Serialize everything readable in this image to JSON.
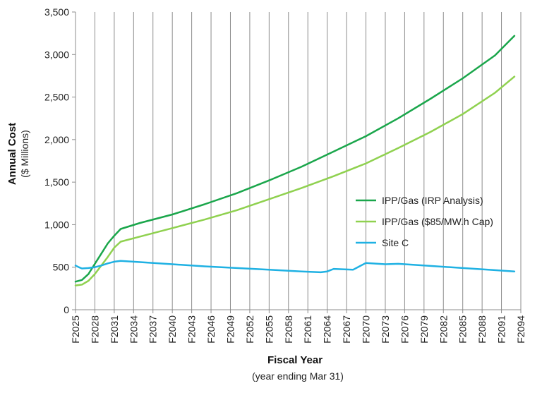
{
  "chart_data": {
    "type": "line",
    "title": "",
    "ylabel": "Annual Cost",
    "ylabel_sub": "($ Millions)",
    "xlabel": "Fiscal Year",
    "xlabel_sub": "(year ending Mar 31)",
    "ylim": [
      0,
      3500
    ],
    "yticks": [
      0,
      500,
      1000,
      1500,
      2000,
      2500,
      3000,
      3500
    ],
    "ytick_labels": [
      "0",
      "500",
      "1,000",
      "1,500",
      "2,000",
      "2,500",
      "3,000",
      "3,500"
    ],
    "xlim": [
      2025,
      2094
    ],
    "xticks": [
      2025,
      2028,
      2031,
      2034,
      2037,
      2040,
      2043,
      2046,
      2049,
      2052,
      2055,
      2058,
      2061,
      2064,
      2067,
      2070,
      2073,
      2076,
      2079,
      2082,
      2085,
      2088,
      2091,
      2094
    ],
    "xtick_labels": [
      "F2025",
      "F2028",
      "F2031",
      "F2034",
      "F2037",
      "F2040",
      "F2043",
      "F2046",
      "F2049",
      "F2052",
      "F2055",
      "F2058",
      "F2061",
      "F2064",
      "F2067",
      "F2070",
      "F2073",
      "F2076",
      "F2079",
      "F2082",
      "F2085",
      "F2088",
      "F2091",
      "F2094"
    ],
    "grid": "vertical",
    "legend_position": "right",
    "series": [
      {
        "name": "IPP/Gas (IRP Analysis)",
        "color": "#1aa64b",
        "x": [
          2025,
          2026,
          2027,
          2028,
          2029,
          2030,
          2031,
          2032,
          2035,
          2040,
          2045,
          2050,
          2055,
          2060,
          2065,
          2070,
          2075,
          2080,
          2085,
          2090,
          2093
        ],
        "values": [
          330,
          350,
          420,
          540,
          660,
          780,
          870,
          950,
          1020,
          1120,
          1240,
          1370,
          1520,
          1680,
          1860,
          2040,
          2250,
          2480,
          2720,
          2990,
          3220
        ]
      },
      {
        "name": "IPP/Gas ($85/MW.h Cap)",
        "color": "#8fd14f",
        "x": [
          2025,
          2026,
          2027,
          2028,
          2029,
          2030,
          2031,
          2032,
          2035,
          2040,
          2045,
          2050,
          2055,
          2060,
          2065,
          2070,
          2075,
          2080,
          2085,
          2090,
          2093
        ],
        "values": [
          285,
          295,
          340,
          420,
          520,
          620,
          730,
          800,
          860,
          960,
          1060,
          1170,
          1300,
          1430,
          1570,
          1720,
          1900,
          2090,
          2300,
          2550,
          2740
        ]
      },
      {
        "name": "Site C",
        "color": "#1fb1e3",
        "x": [
          2025,
          2025.5,
          2026,
          2027,
          2028,
          2029,
          2030,
          2031,
          2032,
          2035,
          2040,
          2045,
          2050,
          2055,
          2060,
          2063,
          2064,
          2065,
          2068,
          2070,
          2073,
          2075,
          2080,
          2085,
          2090,
          2093
        ],
        "values": [
          520,
          500,
          485,
          490,
          500,
          520,
          545,
          565,
          575,
          560,
          535,
          510,
          490,
          470,
          450,
          440,
          450,
          480,
          470,
          550,
          535,
          540,
          515,
          490,
          465,
          450
        ]
      }
    ]
  }
}
